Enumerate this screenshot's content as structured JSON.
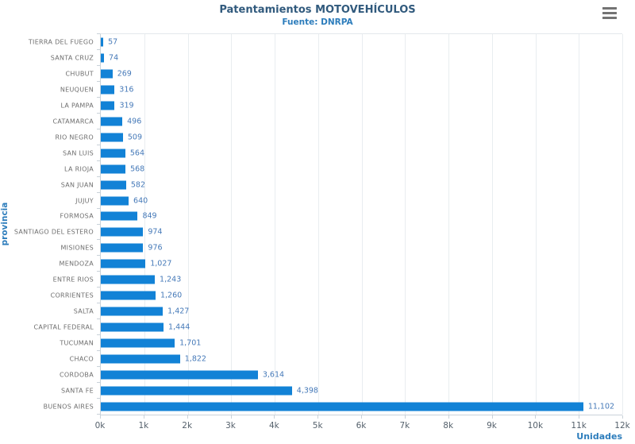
{
  "chart_data": {
    "type": "bar",
    "orientation": "horizontal",
    "title": "Patentamientos MOTOVEHÍCULOS",
    "subtitle": "Fuente: DNRPA",
    "xlabel": "Unidades",
    "ylabel": "provincia",
    "xlim": [
      0,
      12000
    ],
    "grid": true,
    "legend": false,
    "x_ticks": [
      "0k",
      "1k",
      "2k",
      "3k",
      "4k",
      "5k",
      "6k",
      "7k",
      "8k",
      "9k",
      "10k",
      "11k",
      "12k"
    ],
    "categories": [
      "TIERRA DEL FUEGO",
      "SANTA CRUZ",
      "CHUBUT",
      "NEUQUEN",
      "LA PAMPA",
      "CATAMARCA",
      "RIO NEGRO",
      "SAN LUIS",
      "LA RIOJA",
      "SAN JUAN",
      "JUJUY",
      "FORMOSA",
      "SANTIAGO DEL ESTERO",
      "MISIONES",
      "MENDOZA",
      "ENTRE RIOS",
      "CORRIENTES",
      "SALTA",
      "CAPITAL FEDERAL",
      "TUCUMAN",
      "CHACO",
      "CORDOBA",
      "SANTA FE",
      "BUENOS AIRES"
    ],
    "values": [
      57,
      74,
      269,
      316,
      319,
      496,
      509,
      564,
      568,
      582,
      640,
      849,
      974,
      976,
      1027,
      1243,
      1260,
      1427,
      1444,
      1701,
      1822,
      3614,
      4398,
      11102
    ],
    "value_labels": [
      "57",
      "74",
      "269",
      "316",
      "319",
      "496",
      "509",
      "564",
      "568",
      "582",
      "640",
      "849",
      "974",
      "976",
      "1,027",
      "1,243",
      "1,260",
      "1,427",
      "1,444",
      "1,701",
      "1,822",
      "3,614",
      "4,398",
      "11,102"
    ]
  },
  "icons": {
    "menu": "hamburger-menu-icon"
  },
  "colors": {
    "background": "#ffffff",
    "bar": "#1282d6",
    "title": "#315a7d",
    "subtitle": "#2d7dbc",
    "axis_title": "#2d7dbc",
    "category_label": "#6e6e6e",
    "value_label": "#4579b8",
    "tick_label": "#55616c",
    "gridline": "#e9edf0",
    "axis_line": "#c9d2d9"
  }
}
